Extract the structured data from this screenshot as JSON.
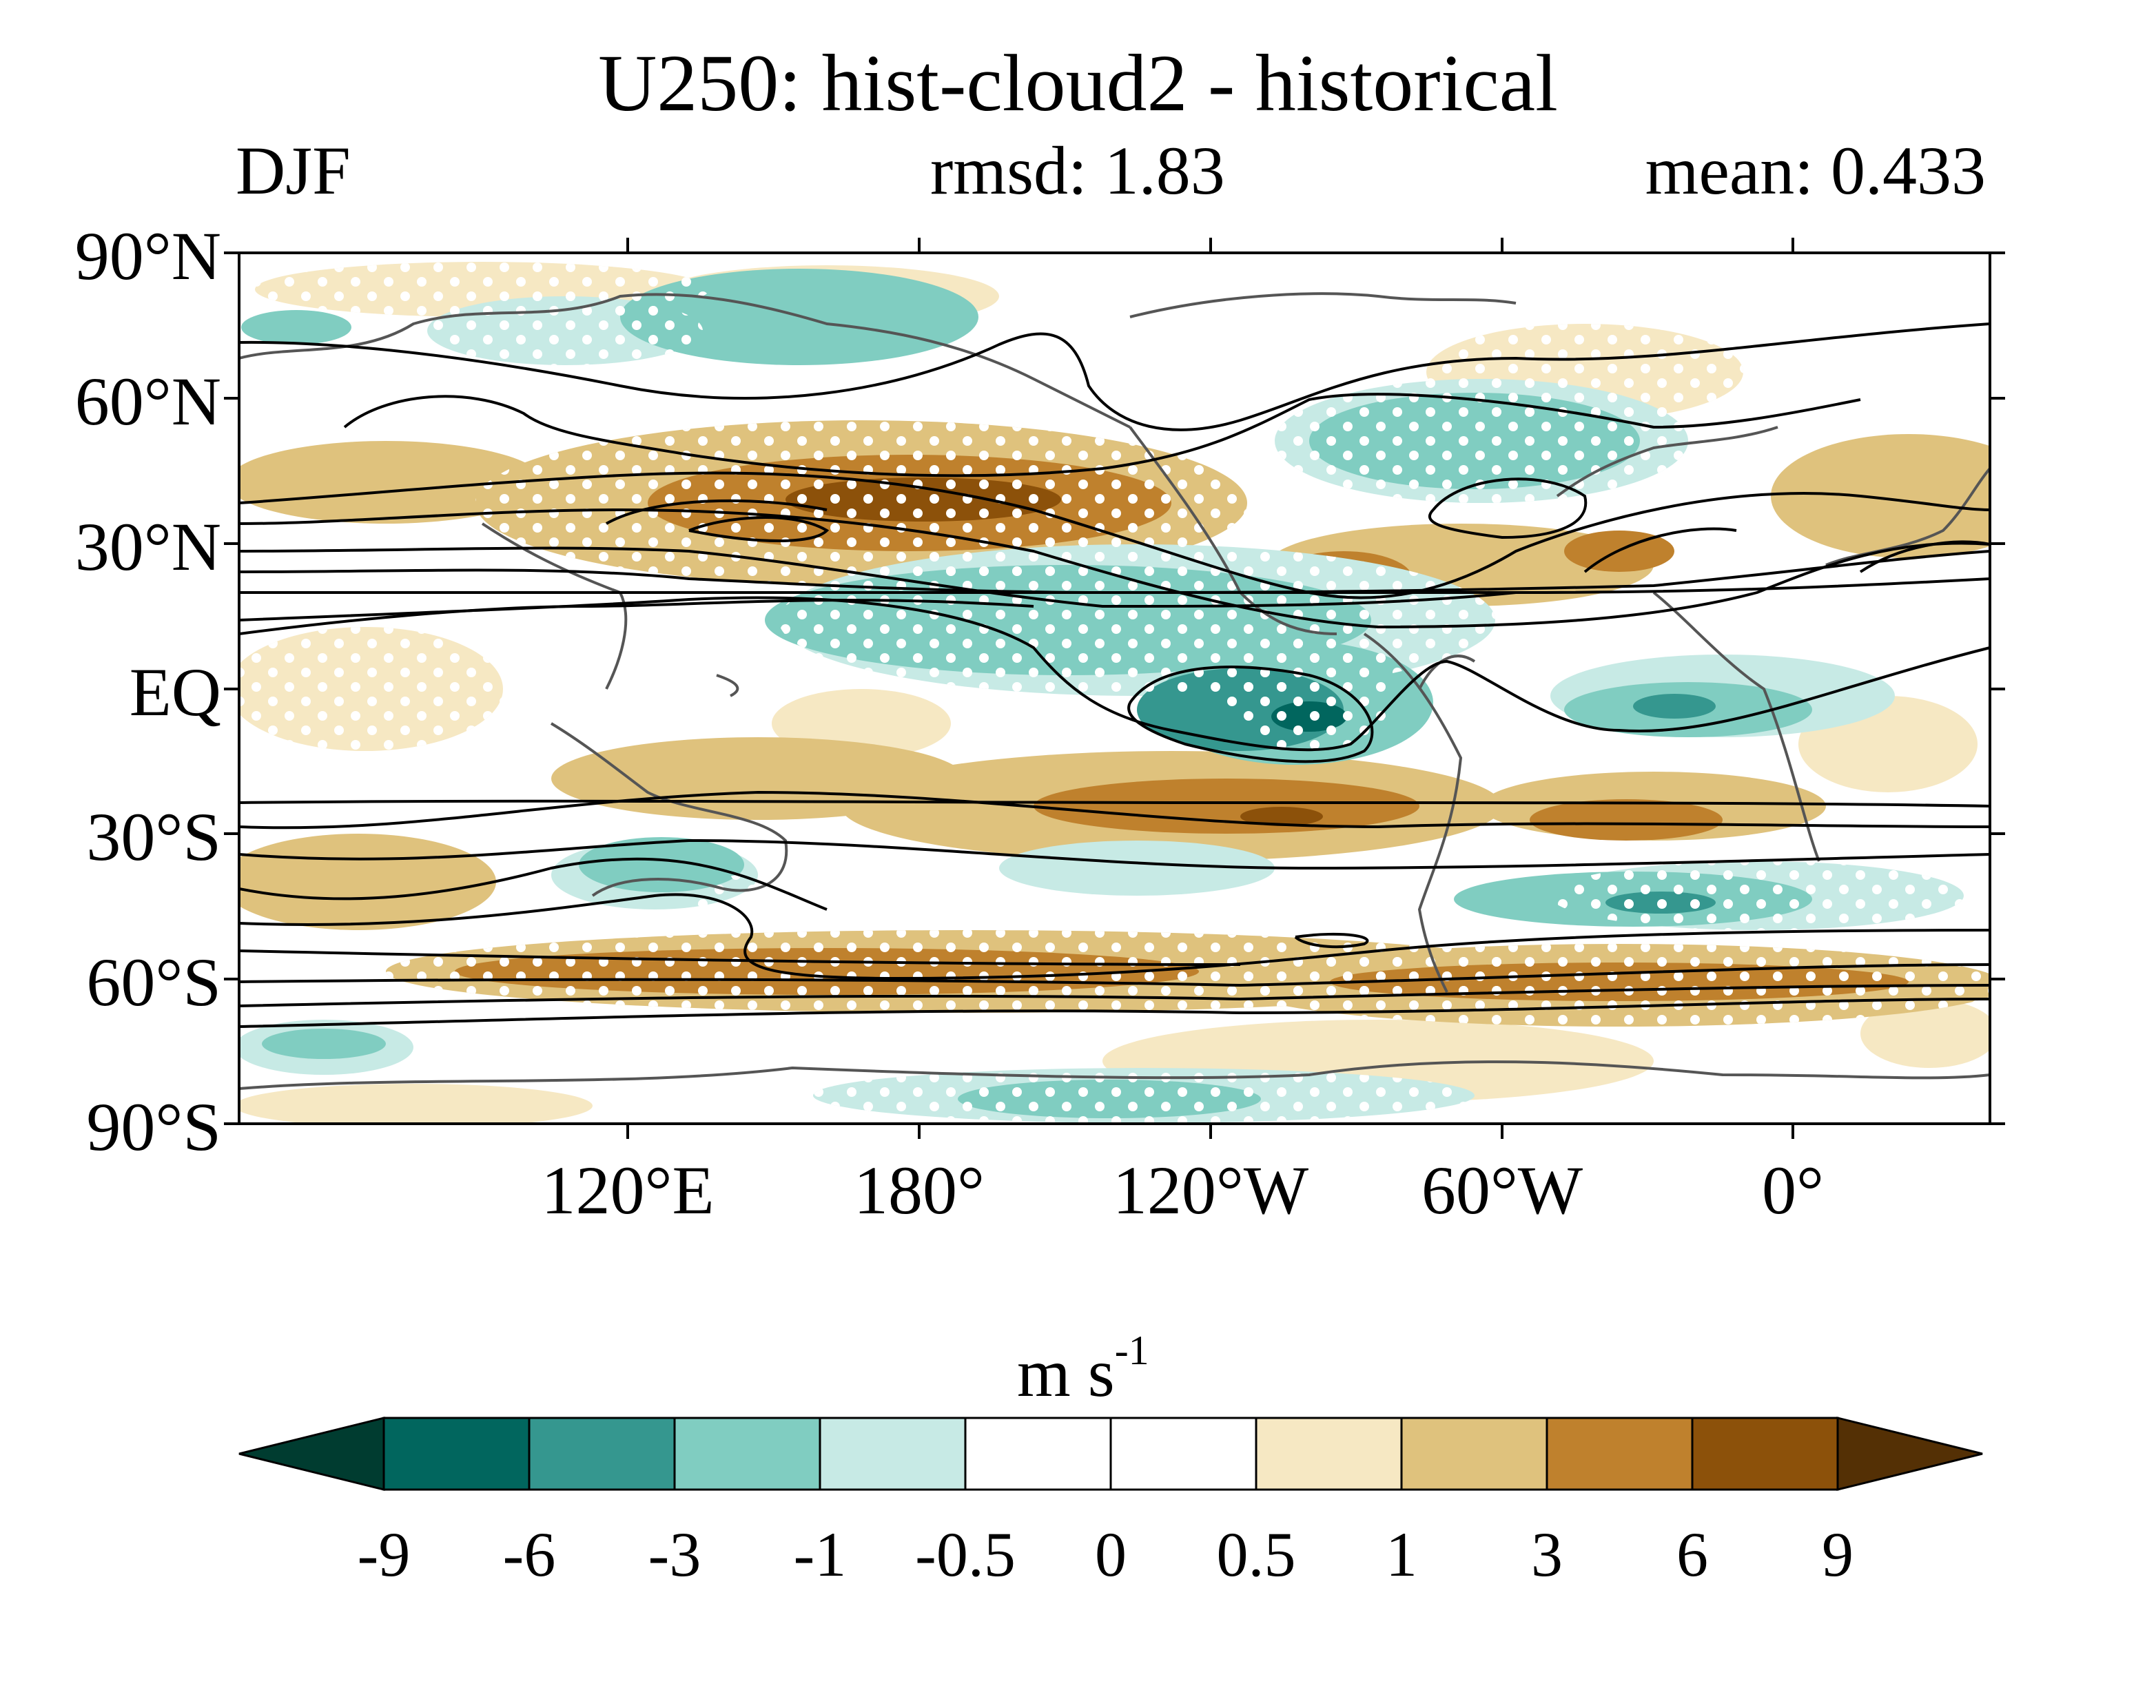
{
  "title": "U250: hist-cloud2 - historical",
  "season": "DJF",
  "rmsd": "rmsd: 1.83",
  "mean": "mean: 0.433",
  "lat_labels": [
    "90°N",
    "60°N",
    "30°N",
    "EQ",
    "30°S",
    "60°S",
    "90°S"
  ],
  "lon_labels": [
    "120°E",
    "180°",
    "120°W",
    "60°W",
    "0°"
  ],
  "colorbar": {
    "units_base": "m s",
    "units_exp": "-1",
    "ticks": [
      "-9",
      "-6",
      "-3",
      "-1",
      "-0.5",
      "0",
      "0.5",
      "1",
      "3",
      "6",
      "9"
    ],
    "colors": [
      "#003c30",
      "#01665e",
      "#35978f",
      "#80cdc1",
      "#c7eae5",
      "#ffffff",
      "#ffffff",
      "#f6e8c3",
      "#dfc27d",
      "#bf812d",
      "#8c510a",
      "#543005"
    ]
  },
  "colors": {
    "contour": "#000000",
    "coast": "#555555",
    "stipple": "#ffffff"
  }
}
